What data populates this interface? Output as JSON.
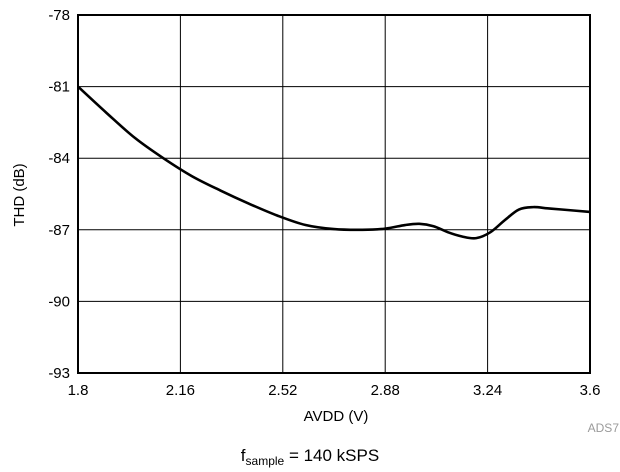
{
  "chart_data": {
    "type": "line",
    "xlabel": "AVDD (V)",
    "ylabel": "THD (dB)",
    "xlim": [
      1.8,
      3.6
    ],
    "ylim": [
      -93,
      -78
    ],
    "x_ticks": [
      "1.8",
      "2.16",
      "2.52",
      "2.88",
      "3.24",
      "3.6"
    ],
    "y_ticks": [
      "-78",
      "-81",
      "-84",
      "-87",
      "-90",
      "-93"
    ],
    "grid": true,
    "series": [
      {
        "x": [
          1.8,
          1.9,
          2.0,
          2.1,
          2.2,
          2.3,
          2.4,
          2.5,
          2.6,
          2.7,
          2.8,
          2.88,
          2.95,
          3.0,
          3.05,
          3.1,
          3.15,
          3.2,
          3.25,
          3.3,
          3.35,
          3.4,
          3.45,
          3.5,
          3.6
        ],
        "values": [
          -81.0,
          -82.1,
          -83.15,
          -84.0,
          -84.75,
          -85.35,
          -85.9,
          -86.4,
          -86.8,
          -86.97,
          -87.0,
          -86.95,
          -86.8,
          -86.75,
          -86.85,
          -87.1,
          -87.28,
          -87.35,
          -87.1,
          -86.6,
          -86.15,
          -86.05,
          -86.1,
          -86.15,
          -86.25
        ]
      }
    ]
  },
  "figure_code": "ADS7",
  "caption": {
    "prefix": "f",
    "subscript": "sample",
    "suffix": " = 140 kSPS"
  }
}
